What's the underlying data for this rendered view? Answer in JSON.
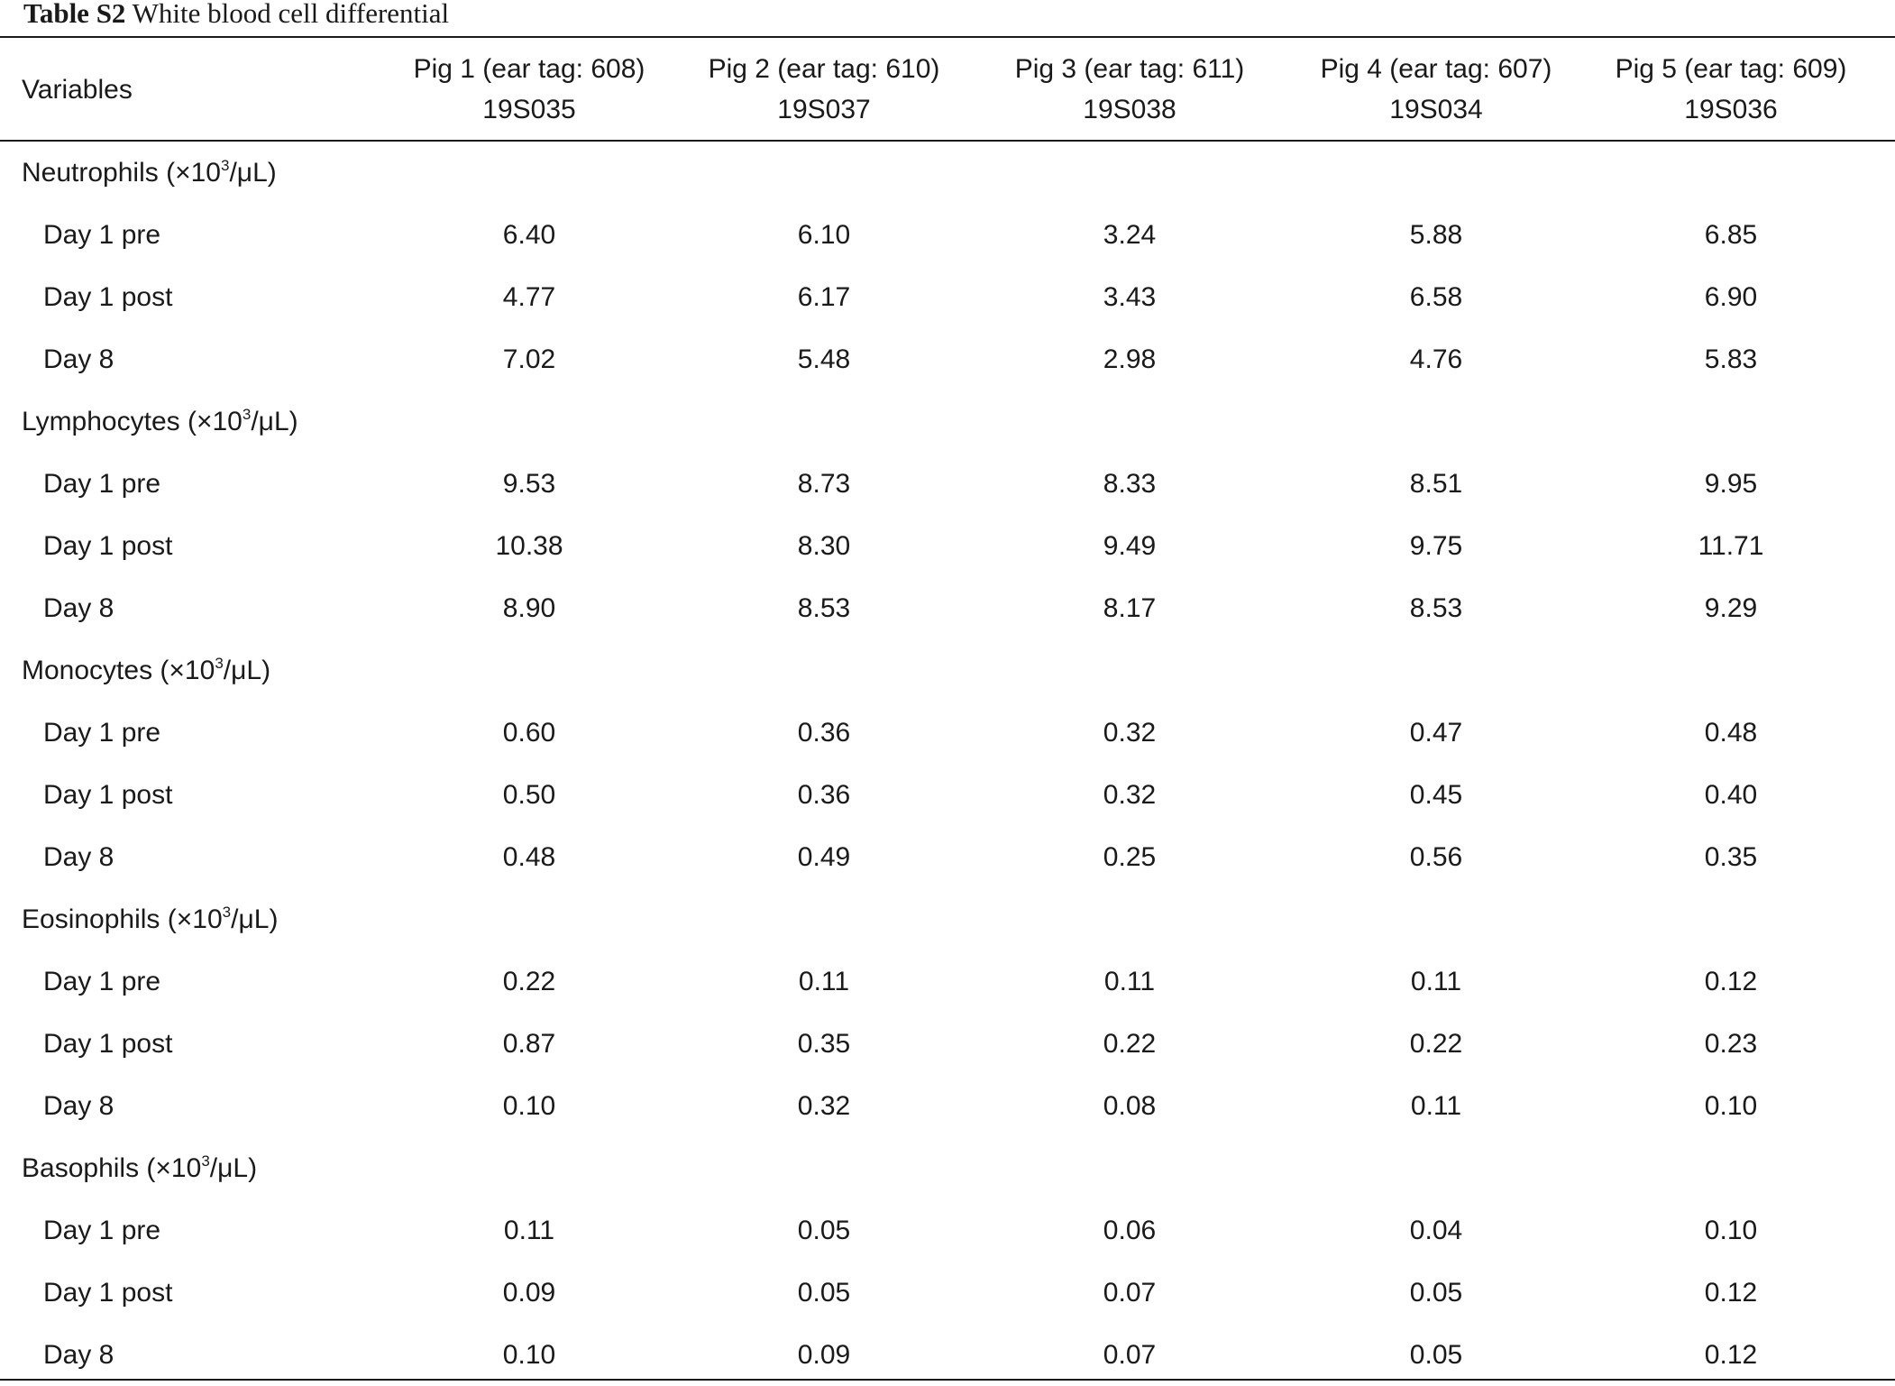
{
  "caption": {
    "label": "Table S2",
    "title": "White blood cell differential"
  },
  "table": {
    "variables_header": "Variables",
    "columns": [
      {
        "name": "Pig 1 (ear tag: 608)",
        "id": "19S035"
      },
      {
        "name": "Pig 2 (ear tag: 610)",
        "id": "19S037"
      },
      {
        "name": "Pig 3 (ear tag: 611)",
        "id": "19S038"
      },
      {
        "name": "Pig 4 (ear tag: 607)",
        "id": "19S034"
      },
      {
        "name": "Pig 5 (ear tag: 609)",
        "id": "19S036"
      }
    ],
    "unit_prefix": "(×10",
    "unit_exp": "3",
    "unit_suffix": "/μL)",
    "groups": [
      {
        "name": "Neutrophils",
        "rows": [
          {
            "label": "Day 1 pre",
            "values": [
              "6.40",
              "6.10",
              "3.24",
              "5.88",
              "6.85"
            ]
          },
          {
            "label": "Day 1 post",
            "values": [
              "4.77",
              "6.17",
              "3.43",
              "6.58",
              "6.90"
            ]
          },
          {
            "label": "Day 8",
            "values": [
              "7.02",
              "5.48",
              "2.98",
              "4.76",
              "5.83"
            ]
          }
        ]
      },
      {
        "name": "Lymphocytes",
        "rows": [
          {
            "label": "Day 1 pre",
            "values": [
              "9.53",
              "8.73",
              "8.33",
              "8.51",
              "9.95"
            ]
          },
          {
            "label": "Day 1 post",
            "values": [
              "10.38",
              "8.30",
              "9.49",
              "9.75",
              "11.71"
            ]
          },
          {
            "label": "Day 8",
            "values": [
              "8.90",
              "8.53",
              "8.17",
              "8.53",
              "9.29"
            ]
          }
        ]
      },
      {
        "name": "Monocytes",
        "rows": [
          {
            "label": "Day 1 pre",
            "values": [
              "0.60",
              "0.36",
              "0.32",
              "0.47",
              "0.48"
            ]
          },
          {
            "label": "Day 1 post",
            "values": [
              "0.50",
              "0.36",
              "0.32",
              "0.45",
              "0.40"
            ]
          },
          {
            "label": "Day 8",
            "values": [
              "0.48",
              "0.49",
              "0.25",
              "0.56",
              "0.35"
            ]
          }
        ]
      },
      {
        "name": "Eosinophils",
        "rows": [
          {
            "label": "Day 1 pre",
            "values": [
              "0.22",
              "0.11",
              "0.11",
              "0.11",
              "0.12"
            ]
          },
          {
            "label": "Day 1 post",
            "values": [
              "0.87",
              "0.35",
              "0.22",
              "0.22",
              "0.23"
            ]
          },
          {
            "label": "Day 8",
            "values": [
              "0.10",
              "0.32",
              "0.08",
              "0.11",
              "0.10"
            ]
          }
        ]
      },
      {
        "name": "Basophils",
        "rows": [
          {
            "label": "Day 1 pre",
            "values": [
              "0.11",
              "0.05",
              "0.06",
              "0.04",
              "0.10"
            ]
          },
          {
            "label": "Day 1 post",
            "values": [
              "0.09",
              "0.05",
              "0.07",
              "0.05",
              "0.12"
            ]
          },
          {
            "label": "Day 8",
            "values": [
              "0.10",
              "0.09",
              "0.07",
              "0.05",
              "0.12"
            ]
          }
        ]
      }
    ]
  }
}
